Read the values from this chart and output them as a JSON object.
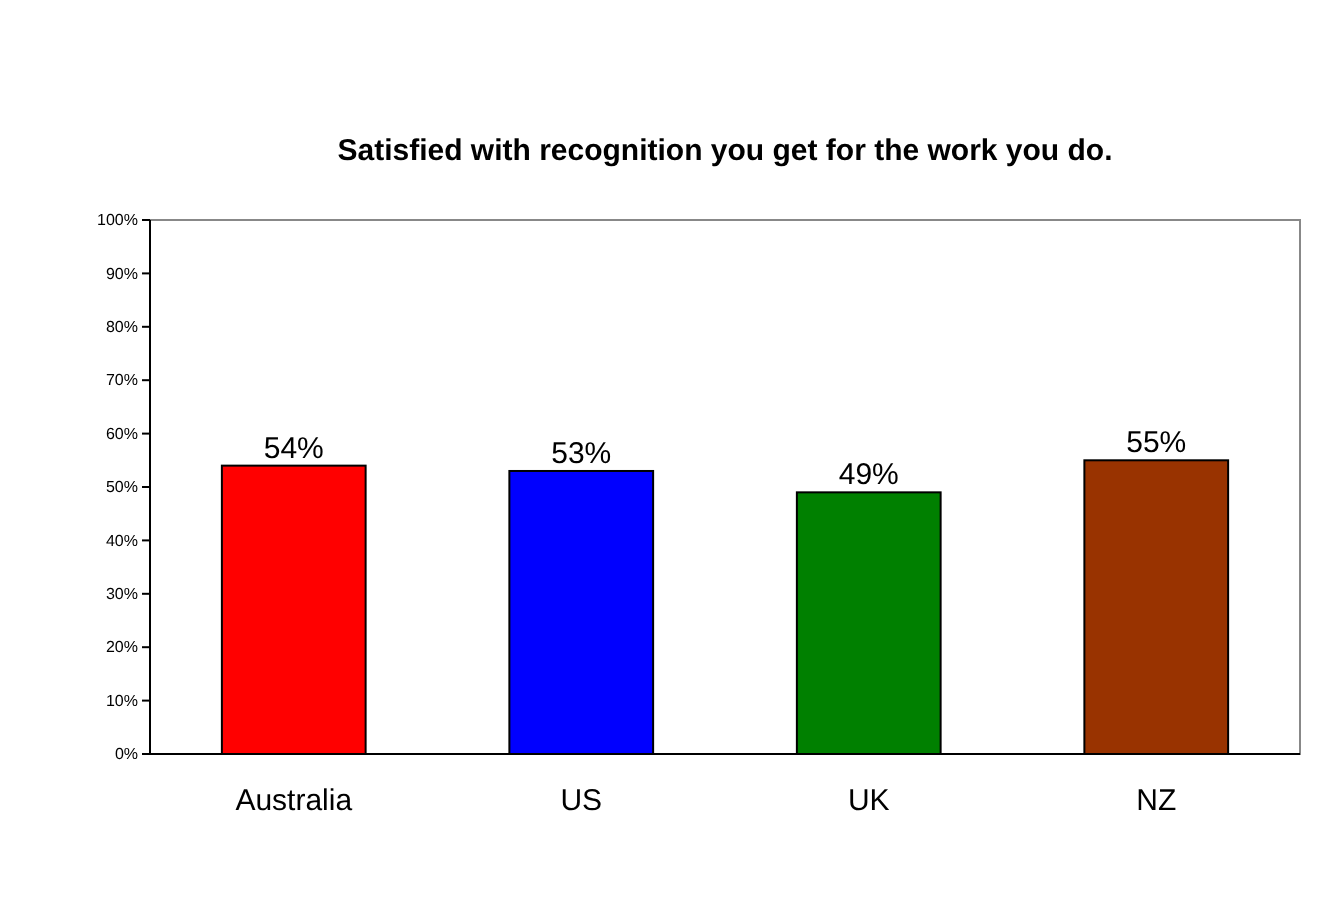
{
  "chart_data": {
    "type": "bar",
    "title": "Satisfied with recognition you get for the work you do.",
    "categories": [
      "Australia",
      "US",
      "UK",
      "NZ"
    ],
    "values": [
      54,
      53,
      49,
      55
    ],
    "colors": [
      "#ff0000",
      "#0000ff",
      "#008000",
      "#993300"
    ],
    "value_labels": [
      "54%",
      "53%",
      "49%",
      "55%"
    ],
    "ylim": [
      0,
      100
    ],
    "yticks": [
      {
        "value": 0,
        "label": "0%"
      },
      {
        "value": 10,
        "label": "10%"
      },
      {
        "value": 20,
        "label": "20%"
      },
      {
        "value": 30,
        "label": "30%"
      },
      {
        "value": 40,
        "label": "40%"
      },
      {
        "value": 50,
        "label": "50%"
      },
      {
        "value": 60,
        "label": "60%"
      },
      {
        "value": 70,
        "label": "70%"
      },
      {
        "value": 80,
        "label": "80%"
      },
      {
        "value": 90,
        "label": "90%"
      },
      {
        "value": 100,
        "label": "100%"
      }
    ],
    "ylabel": null
  }
}
